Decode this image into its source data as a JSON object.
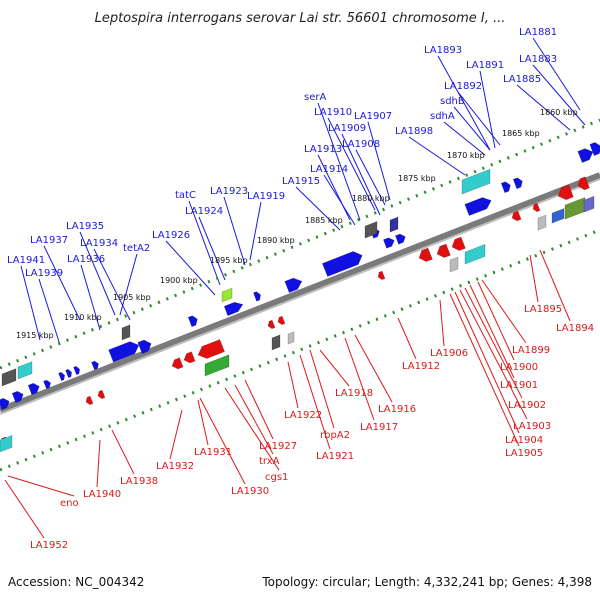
{
  "title": "Leptospira interrogans serovar Lai str. 56601 chromosome I, ...",
  "footer": {
    "accession": "Accession: NC_004342",
    "summary": "Topology: circular; Length: 4,332,241 bp; Genes: 4,398"
  },
  "colors": {
    "forward_gene": "#1010e0",
    "reverse_gene": "#e01010",
    "backbone": "#808080",
    "tick": "#2e8b2e",
    "top_label": "#1a1adc",
    "bottom_label": "#dc1a1a"
  },
  "scale_ticks": [
    "1860 kbp",
    "1865 kbp",
    "1870 kbp",
    "1875 kbp",
    "1880 kbp",
    "1885 kbp",
    "1890 kbp",
    "1895 kbp",
    "1900 kbp",
    "1905 kbp",
    "1910 kbp",
    "1915 kbp"
  ],
  "top_labels": [
    "LA1881",
    "LA1893",
    "LA1883",
    "LA1891",
    "LA1885",
    "LA1892",
    "sdhB",
    "sdhA",
    "serA",
    "LA1910",
    "LA1909",
    "LA1907",
    "LA1898",
    "LA1908",
    "LA1913",
    "LA1914",
    "LA1915",
    "tatC",
    "LA1923",
    "LA1924",
    "LA1919",
    "LA1926",
    "LA1935",
    "LA1937",
    "LA1934",
    "LA1936",
    "tetA2",
    "LA1941",
    "LA1939"
  ],
  "bottom_labels": [
    "LA1895",
    "LA1894",
    "LA1899",
    "LA1900",
    "LA1901",
    "LA1902",
    "LA1903",
    "LA1904",
    "LA1905",
    "LA1906",
    "LA1912",
    "LA1916",
    "LA1917",
    "LA1918",
    "rbpA2",
    "LA1921",
    "LA1922",
    "LA1927",
    "trxA",
    "cgs1",
    "LA1930",
    "LA1931",
    "LA1932",
    "LA1938",
    "LA1940",
    "eno",
    "LA1952"
  ]
}
